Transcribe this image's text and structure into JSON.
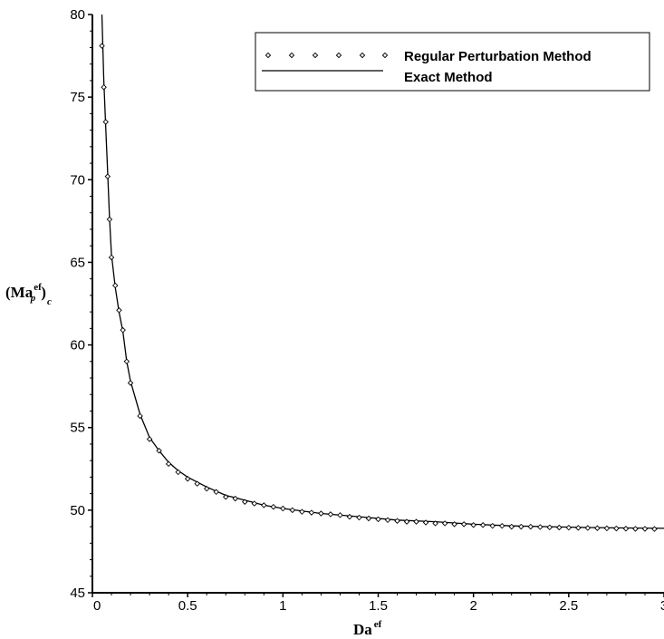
{
  "chart_data": {
    "type": "line",
    "xlabel": {
      "base": "Da",
      "superscript": "ef"
    },
    "ylabel": {
      "open": "(",
      "base": "Ma",
      "superscript": "ef",
      "subscript": "p",
      "close": ")",
      "outer_subscript": "c"
    },
    "xlim": [
      0,
      3
    ],
    "ylim": [
      45,
      80
    ],
    "x_ticks": [
      0,
      0.5,
      1,
      1.5,
      2,
      2.5,
      3
    ],
    "x_tick_labels": [
      "0",
      "0.5",
      "1",
      "1.5",
      "2",
      "2.5",
      "3"
    ],
    "y_ticks": [
      45,
      50,
      55,
      60,
      65,
      70,
      75,
      80
    ],
    "y_tick_labels": [
      "45",
      "50",
      "55",
      "60",
      "65",
      "70",
      "75",
      "80"
    ],
    "grid": false,
    "legend_position": "top-right",
    "series": [
      {
        "name": "Regular Perturbation Method",
        "style": "diamond-markers",
        "color": "#000000",
        "x": [
          0.05,
          0.06,
          0.07,
          0.08,
          0.09,
          0.1,
          0.12,
          0.14,
          0.16,
          0.18,
          0.2,
          0.25,
          0.3,
          0.35,
          0.4,
          0.45,
          0.5,
          0.55,
          0.6,
          0.65,
          0.7,
          0.75,
          0.8,
          0.85,
          0.9,
          0.95,
          1.0,
          1.05,
          1.1,
          1.15,
          1.2,
          1.25,
          1.3,
          1.35,
          1.4,
          1.45,
          1.5,
          1.55,
          1.6,
          1.65,
          1.7,
          1.75,
          1.8,
          1.85,
          1.9,
          1.95,
          2.0,
          2.05,
          2.1,
          2.15,
          2.2,
          2.25,
          2.3,
          2.35,
          2.4,
          2.45,
          2.5,
          2.55,
          2.6,
          2.65,
          2.7,
          2.75,
          2.8,
          2.85,
          2.9,
          2.95
        ],
        "y": [
          78.1,
          75.6,
          73.5,
          70.2,
          67.6,
          65.3,
          63.6,
          62.1,
          60.9,
          59.0,
          57.7,
          55.7,
          54.3,
          53.6,
          52.8,
          52.3,
          51.9,
          51.6,
          51.3,
          51.1,
          50.8,
          50.7,
          50.5,
          50.4,
          50.3,
          50.2,
          50.1,
          50.0,
          49.9,
          49.85,
          49.8,
          49.75,
          49.7,
          49.6,
          49.55,
          49.5,
          49.45,
          49.4,
          49.35,
          49.3,
          49.3,
          49.25,
          49.2,
          49.2,
          49.15,
          49.15,
          49.1,
          49.1,
          49.05,
          49.05,
          49.0,
          49.0,
          49.0,
          48.98,
          48.96,
          48.95,
          48.94,
          48.93,
          48.92,
          48.91,
          48.9,
          48.89,
          48.88,
          48.87,
          48.87,
          48.86
        ]
      },
      {
        "name": "Exact Method",
        "style": "solid-line",
        "color": "#000000",
        "x": [
          0.05,
          0.06,
          0.07,
          0.08,
          0.09,
          0.1,
          0.12,
          0.14,
          0.16,
          0.18,
          0.2,
          0.25,
          0.3,
          0.35,
          0.4,
          0.45,
          0.5,
          0.6,
          0.7,
          0.8,
          0.9,
          1.0,
          1.2,
          1.4,
          1.6,
          1.8,
          2.0,
          2.2,
          2.4,
          2.6,
          2.8,
          3.0
        ],
        "y": [
          80.0,
          76.0,
          73.2,
          70.5,
          67.7,
          65.5,
          63.5,
          62.0,
          60.8,
          59.0,
          57.8,
          55.8,
          54.4,
          53.6,
          52.9,
          52.4,
          52.0,
          51.4,
          50.9,
          50.6,
          50.3,
          50.1,
          49.8,
          49.6,
          49.4,
          49.3,
          49.15,
          49.05,
          49.0,
          48.95,
          48.92,
          48.9
        ]
      }
    ]
  }
}
